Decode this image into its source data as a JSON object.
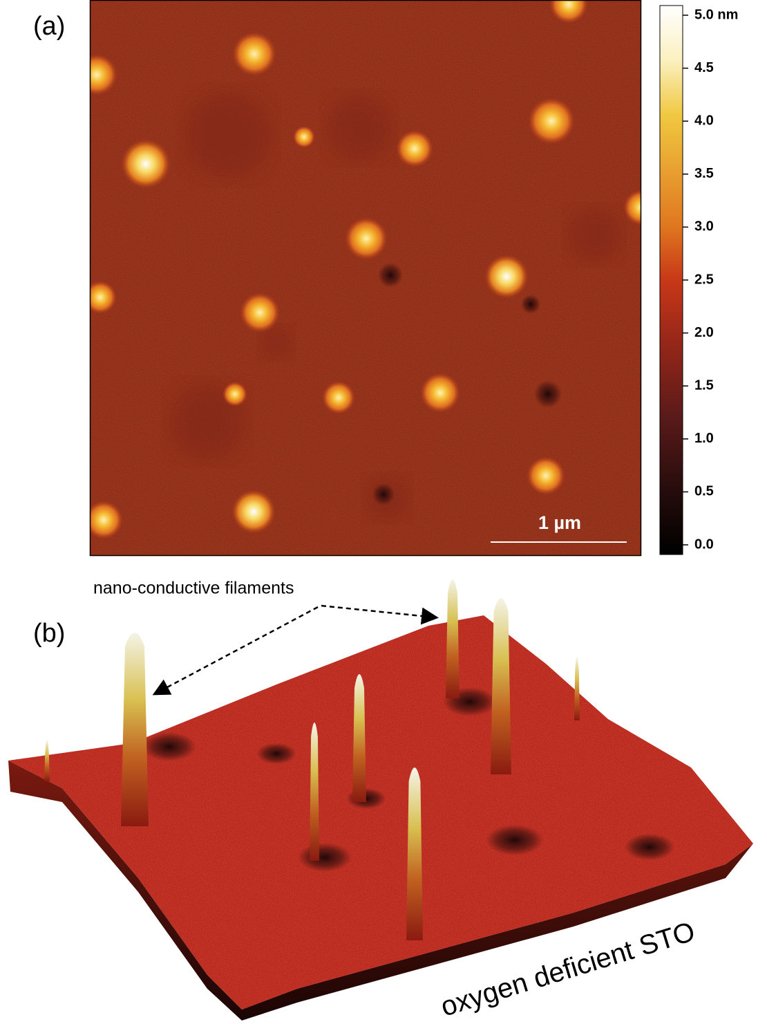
{
  "panel_a": {
    "label": "(a)",
    "colorbar": {
      "ticks": [
        "5.0 nm",
        "4.5",
        "4.0",
        "3.5",
        "3.0",
        "2.5",
        "2.0",
        "1.5",
        "1.0",
        "0.5",
        "0.0"
      ]
    },
    "scale_bar": "1 µm"
  },
  "panel_b": {
    "label": "(b)",
    "annotation": "nano-conductive filaments",
    "substrate_label": "oxygen deficient STO"
  }
}
